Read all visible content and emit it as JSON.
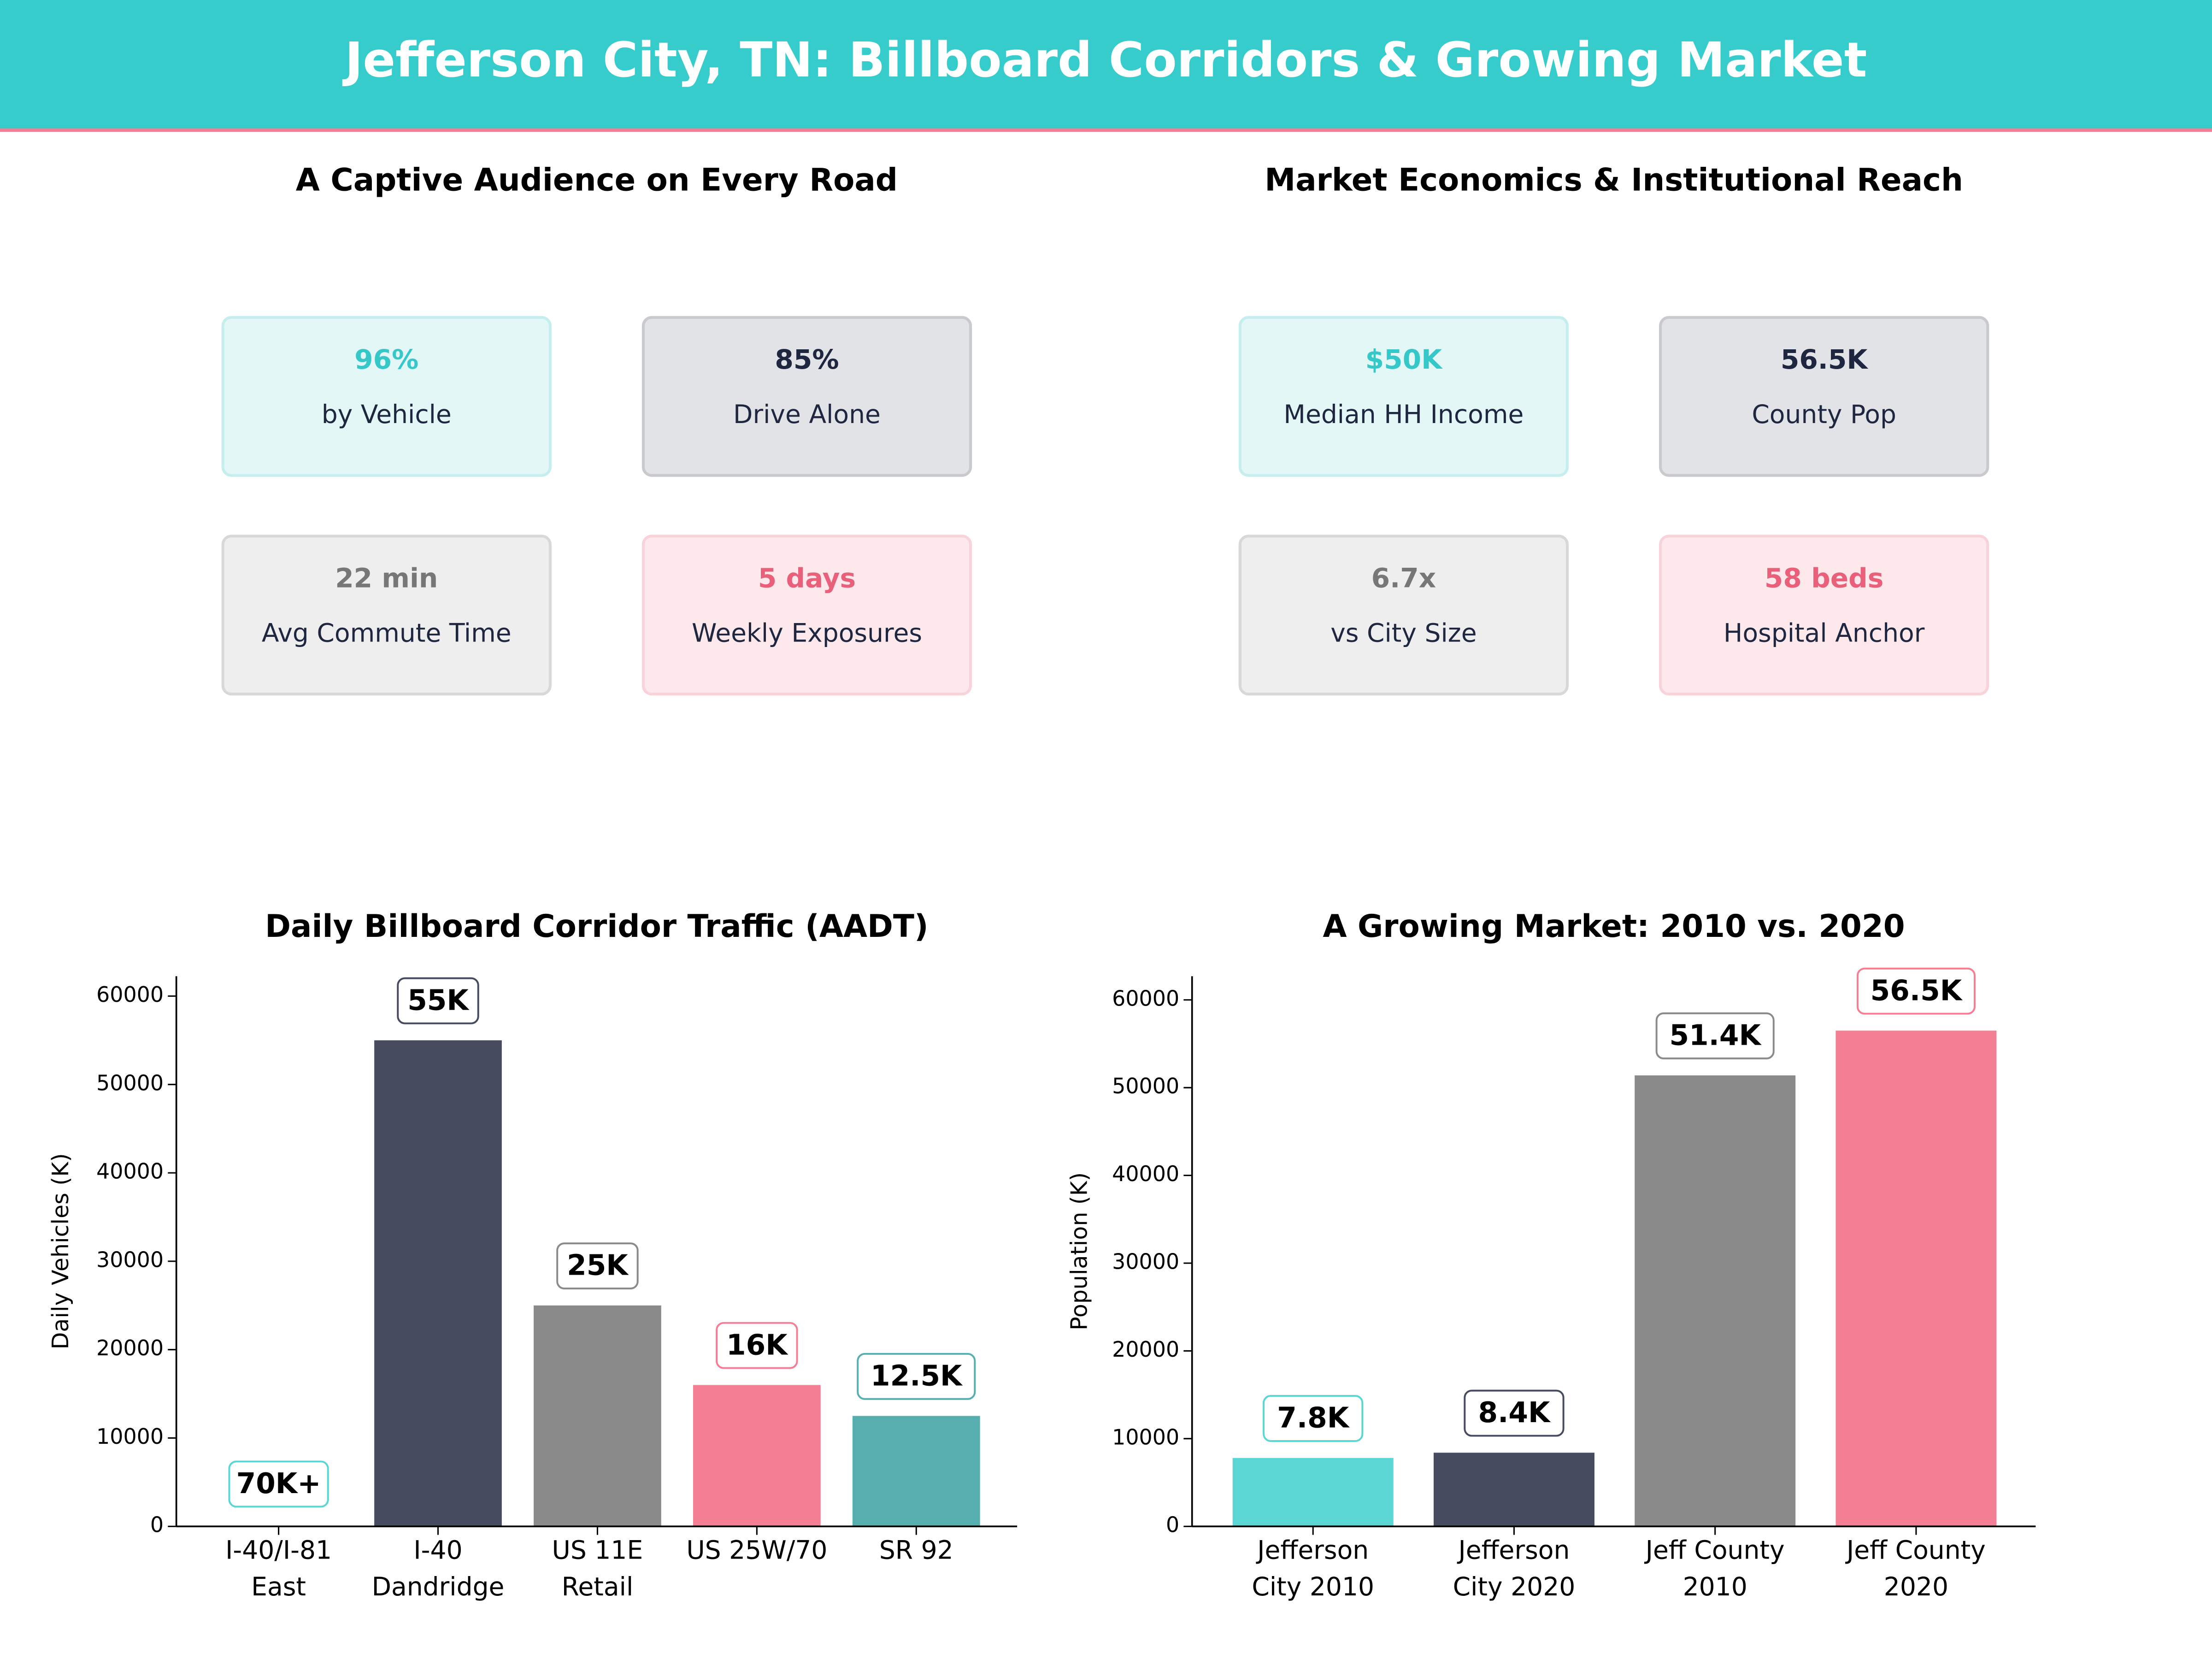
{
  "header": {
    "title": "Jefferson City, TN: Billboard Corridors & Growing Market"
  },
  "panels": [
    {
      "title": "A Captive Audience on Every Road",
      "cards": [
        {
          "value": "96%",
          "label": "by Vehicle"
        },
        {
          "value": "85%",
          "label": "Drive Alone"
        },
        {
          "value": "22 min",
          "label": "Avg Commute Time"
        },
        {
          "value": "5 days",
          "label": "Weekly Exposures"
        }
      ]
    },
    {
      "title": "Market Economics & Institutional Reach",
      "cards": [
        {
          "value": "$50K",
          "label": "Median HH Income"
        },
        {
          "value": "56.5K",
          "label": "County Pop"
        },
        {
          "value": "6.7x",
          "label": "vs City Size"
        },
        {
          "value": "58 beds",
          "label": "Hospital Anchor"
        }
      ]
    }
  ],
  "chart_data": [
    {
      "type": "bar",
      "title": "Daily Billboard Corridor Traffic (AADT)",
      "y_label": "Daily Vehicles (K)",
      "categories": [
        "I-40/I-81\nEast",
        "I-40\nDandridge",
        "US 11E\nRetail",
        "US 25W/70",
        "SR 92"
      ],
      "values": [
        null,
        55000,
        25000,
        16000,
        12500
      ],
      "value_labels": [
        "70K+",
        "55K",
        "25K",
        "16K",
        "12.5K"
      ],
      "colors": [
        "#5ad6d4",
        "#464b60",
        "#8a8a8a",
        "#f47e93",
        "#56aeae"
      ],
      "ylim": [
        0,
        62250
      ],
      "yticks": [
        0,
        10000,
        20000,
        30000,
        40000,
        50000,
        60000
      ]
    },
    {
      "type": "bar",
      "title": "A Growing Market: 2010 vs. 2020",
      "y_label": "Population (K)",
      "categories": [
        "Jefferson\nCity 2010",
        "Jefferson\nCity 2020",
        "Jeff County\n2010",
        "Jeff County\n2020"
      ],
      "values": [
        7800,
        8400,
        51400,
        56500
      ],
      "value_labels": [
        "7.8K",
        "8.4K",
        "51.4K",
        "56.5K"
      ],
      "colors": [
        "#5ad6d4",
        "#464b60",
        "#8a8a8a",
        "#f47e93"
      ],
      "ylim": [
        0,
        62700
      ],
      "yticks": [
        0,
        10000,
        20000,
        30000,
        40000,
        50000,
        60000
      ]
    }
  ]
}
